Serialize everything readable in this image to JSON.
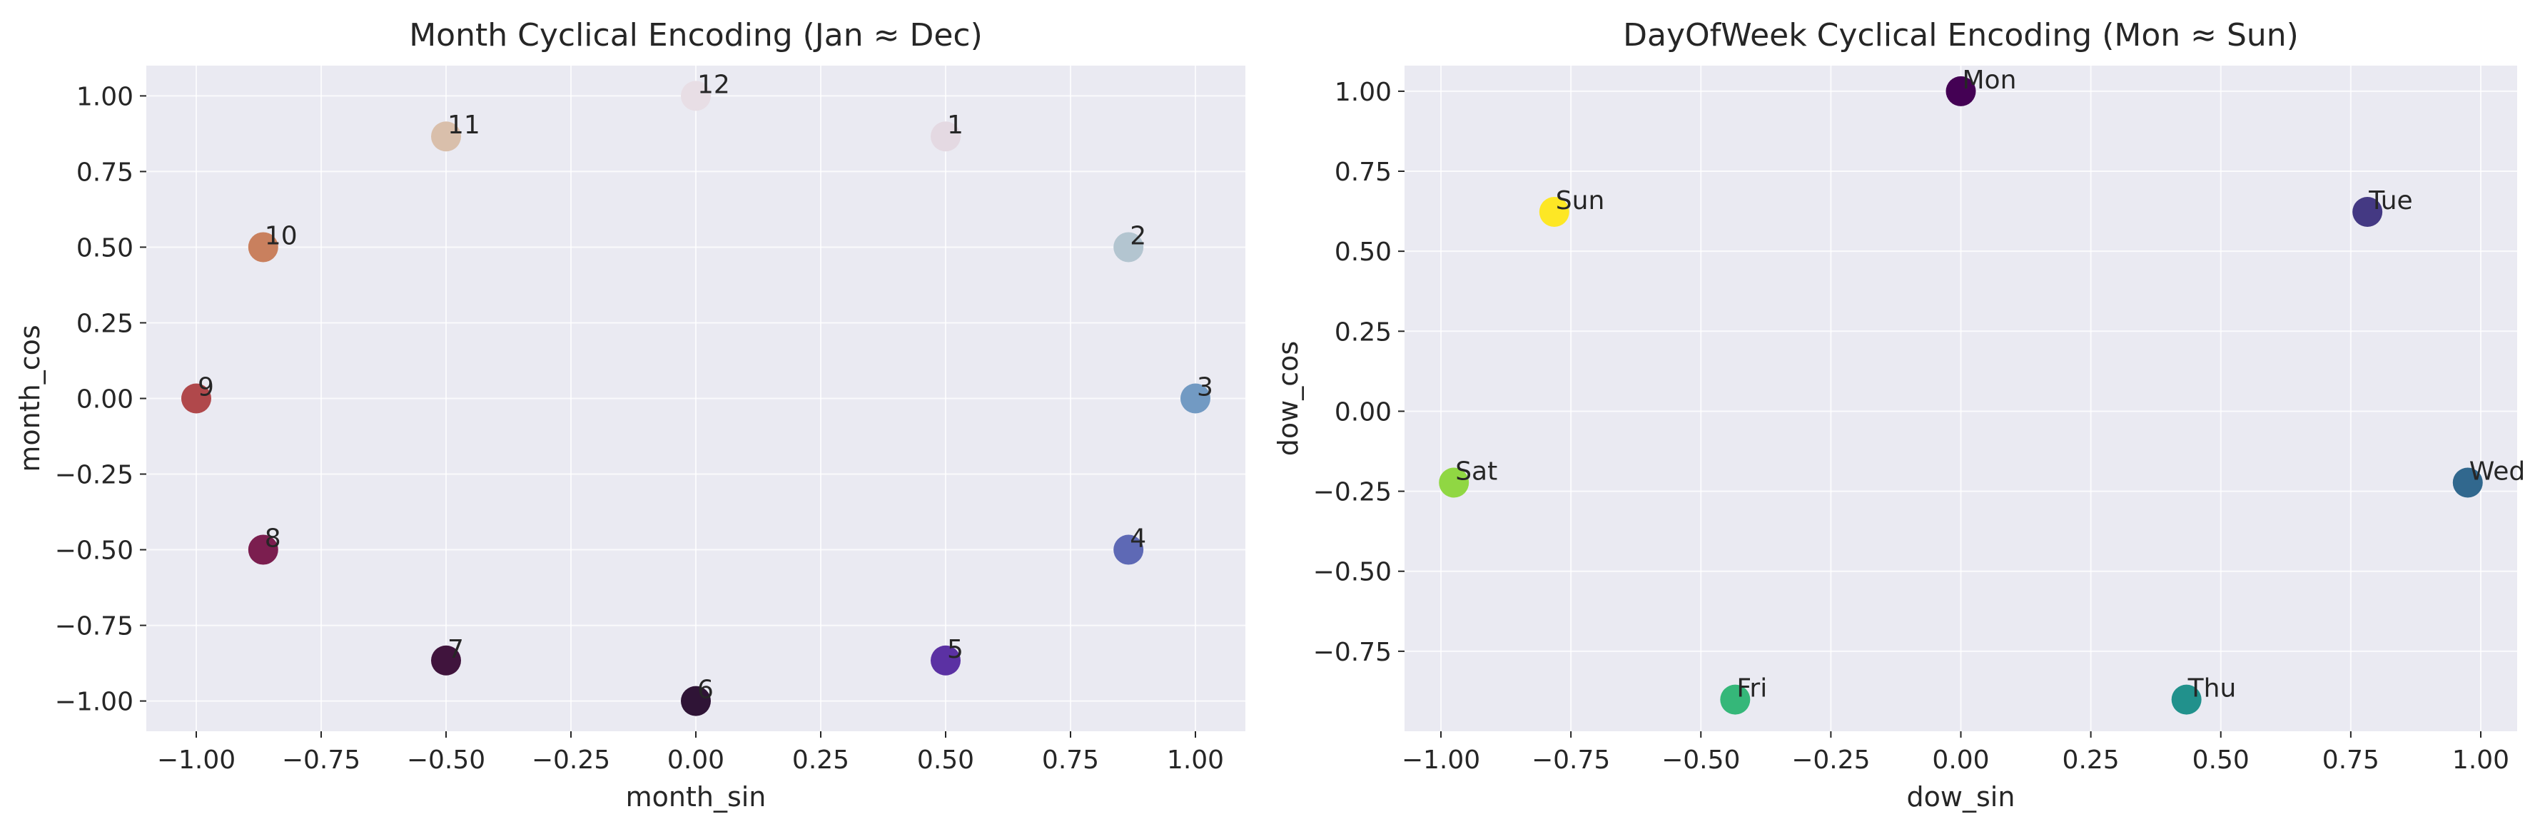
{
  "chart_data": [
    {
      "type": "scatter",
      "title": "Month Cyclical Encoding (Jan ≈ Dec)",
      "xlabel": "month_sin",
      "ylabel": "month_cos",
      "xlim": [
        -1.1,
        1.1
      ],
      "ylim": [
        -1.1,
        1.1
      ],
      "xticks": [
        -1.0,
        -0.75,
        -0.5,
        -0.25,
        0.0,
        0.25,
        0.5,
        0.75,
        1.0
      ],
      "yticks": [
        1.0,
        0.75,
        0.5,
        0.25,
        0.0,
        -0.25,
        -0.5,
        -0.75,
        -1.0
      ],
      "xtick_labels": [
        "−1.00",
        "−0.75",
        "−0.50",
        "−0.25",
        "0.00",
        "0.25",
        "0.50",
        "0.75",
        "1.00"
      ],
      "ytick_labels": [
        "1.00",
        "0.75",
        "0.50",
        "0.25",
        "0.00",
        "−0.25",
        "−0.50",
        "−0.75",
        "−1.00"
      ],
      "grid": true,
      "points": [
        {
          "label": "1",
          "x": 0.5,
          "y": 0.866,
          "color": "#e4d9e2"
        },
        {
          "label": "2",
          "x": 0.866,
          "y": 0.5,
          "color": "#b3c5d0"
        },
        {
          "label": "3",
          "x": 1.0,
          "y": 0.0,
          "color": "#729ac3"
        },
        {
          "label": "4",
          "x": 0.866,
          "y": -0.5,
          "color": "#5e69b5"
        },
        {
          "label": "5",
          "x": 0.5,
          "y": -0.866,
          "color": "#5b31a3"
        },
        {
          "label": "6",
          "x": 0.0,
          "y": -1.0,
          "color": "#2f1436"
        },
        {
          "label": "7",
          "x": -0.5,
          "y": -0.866,
          "color": "#40143d"
        },
        {
          "label": "8",
          "x": -0.866,
          "y": -0.5,
          "color": "#7b1e4f"
        },
        {
          "label": "9",
          "x": -1.0,
          "y": 0.0,
          "color": "#b0484b"
        },
        {
          "label": "10",
          "x": -0.866,
          "y": 0.5,
          "color": "#c9805e"
        },
        {
          "label": "11",
          "x": -0.5,
          "y": 0.866,
          "color": "#d9bfab"
        },
        {
          "label": "12",
          "x": 0.0,
          "y": 1.0,
          "color": "#e8dee5"
        }
      ]
    },
    {
      "type": "scatter",
      "title": "DayOfWeek Cyclical Encoding (Mon ≈ Sun)",
      "xlabel": "dow_sin",
      "ylabel": "dow_cos",
      "xlim": [
        -1.07,
        1.07
      ],
      "ylim": [
        -1.0,
        1.08
      ],
      "xticks": [
        -1.0,
        -0.75,
        -0.5,
        -0.25,
        0.0,
        0.25,
        0.5,
        0.75,
        1.0
      ],
      "yticks": [
        1.0,
        0.75,
        0.5,
        0.25,
        0.0,
        -0.25,
        -0.5,
        -0.75
      ],
      "xtick_labels": [
        "−1.00",
        "−0.75",
        "−0.50",
        "−0.25",
        "0.00",
        "0.25",
        "0.50",
        "0.75",
        "1.00"
      ],
      "ytick_labels": [
        "1.00",
        "0.75",
        "0.50",
        "0.25",
        "0.00",
        "−0.25",
        "−0.50",
        "−0.75"
      ],
      "grid": true,
      "points": [
        {
          "label": "Mon",
          "x": 0.0,
          "y": 1.0,
          "color": "#440154"
        },
        {
          "label": "Tue",
          "x": 0.782,
          "y": 0.623,
          "color": "#443983"
        },
        {
          "label": "Wed",
          "x": 0.975,
          "y": -0.223,
          "color": "#31688e"
        },
        {
          "label": "Thu",
          "x": 0.434,
          "y": -0.901,
          "color": "#21918c"
        },
        {
          "label": "Fri",
          "x": -0.434,
          "y": -0.901,
          "color": "#35b779"
        },
        {
          "label": "Sat",
          "x": -0.975,
          "y": -0.223,
          "color": "#90d743"
        },
        {
          "label": "Sun",
          "x": -0.782,
          "y": 0.623,
          "color": "#fde725"
        }
      ]
    }
  ]
}
